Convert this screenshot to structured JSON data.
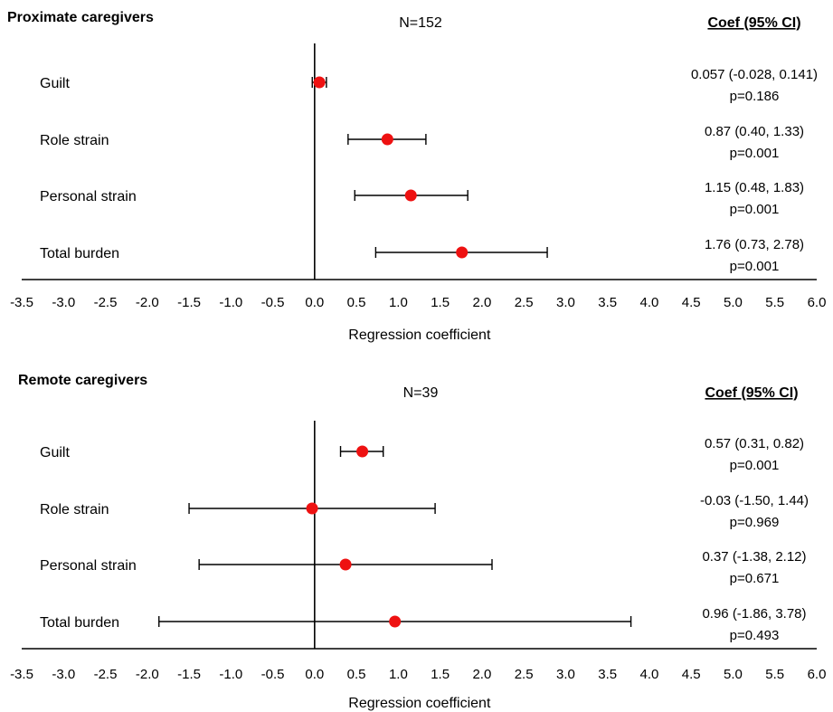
{
  "chart_data": [
    {
      "type": "forest",
      "title": "Proximate caregivers",
      "n_label": "N=152",
      "stats_header": "Coef (95% CI)",
      "xlabel": "Regression coefficient",
      "xlim": [
        -3.5,
        6.0
      ],
      "xticks": [
        "-3.5",
        "-3.0",
        "-2.5",
        "-2.0",
        "-1.5",
        "-1.0",
        "-0.5",
        "0.0",
        "0.5",
        "1.0",
        "1.5",
        "2.0",
        "2.5",
        "3.0",
        "3.5",
        "4.0",
        "4.5",
        "5.0",
        "5.5",
        "6.0"
      ],
      "marker_color": "#ee1111",
      "rows": [
        {
          "label": "Guilt",
          "coef": 0.057,
          "lo": -0.028,
          "hi": 0.141,
          "ci_text": "0.057 (-0.028, 0.141)",
          "p_text": "p=0.186"
        },
        {
          "label": "Role strain",
          "coef": 0.87,
          "lo": 0.4,
          "hi": 1.33,
          "ci_text": "0.87 (0.40, 1.33)",
          "p_text": "p=0.001"
        },
        {
          "label": "Personal strain",
          "coef": 1.15,
          "lo": 0.48,
          "hi": 1.83,
          "ci_text": "1.15 (0.48, 1.83)",
          "p_text": "p=0.001"
        },
        {
          "label": "Total burden",
          "coef": 1.76,
          "lo": 0.73,
          "hi": 2.78,
          "ci_text": "1.76 (0.73, 2.78)",
          "p_text": "p=0.001"
        }
      ]
    },
    {
      "type": "forest",
      "title": "Remote caregivers",
      "n_label": "N=39",
      "stats_header": "Coef (95% CI)",
      "xlabel": "Regression coefficient",
      "xlim": [
        -3.5,
        6.0
      ],
      "xticks": [
        "-3.5",
        "-3.0",
        "-2.5",
        "-2.0",
        "-1.5",
        "-1.0",
        "-0.5",
        "0.0",
        "0.5",
        "1.0",
        "1.5",
        "2.0",
        "2.5",
        "3.0",
        "3.5",
        "4.0",
        "4.5",
        "5.0",
        "5.5",
        "6.0"
      ],
      "marker_color": "#ee1111",
      "rows": [
        {
          "label": "Guilt",
          "coef": 0.57,
          "lo": 0.31,
          "hi": 0.82,
          "ci_text": "0.57 (0.31, 0.82)",
          "p_text": "p=0.001"
        },
        {
          "label": "Role strain",
          "coef": -0.03,
          "lo": -1.5,
          "hi": 1.44,
          "ci_text": "-0.03 (-1.50, 1.44)",
          "p_text": "p=0.969"
        },
        {
          "label": "Personal strain",
          "coef": 0.37,
          "lo": -1.38,
          "hi": 2.12,
          "ci_text": "0.37 (-1.38, 2.12)",
          "p_text": "p=0.671"
        },
        {
          "label": "Total burden",
          "coef": 0.96,
          "lo": -1.86,
          "hi": 3.78,
          "ci_text": "0.96 (-1.86, 3.78)",
          "p_text": "p=0.493"
        }
      ]
    }
  ]
}
